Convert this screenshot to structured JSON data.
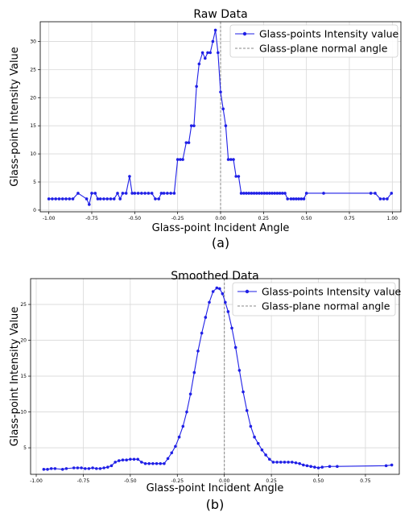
{
  "chart_data": [
    {
      "type": "line",
      "title": "Raw Data",
      "caption": "(a)",
      "xlabel": "Glass-point Incident Angle",
      "ylabel": "Glass-point Intensity Value",
      "xlim": [
        -1.05,
        1.05
      ],
      "ylim": [
        -0.3,
        33.5
      ],
      "xticks": [
        -1.0,
        -0.75,
        -0.5,
        -0.25,
        0.0,
        0.25,
        0.5,
        0.75,
        1.0
      ],
      "xtick_labels": [
        "-1.00",
        "-0.75",
        "-0.50",
        "-0.25",
        "0.00",
        "0.25",
        "0.50",
        "0.75",
        "1.00"
      ],
      "yticks": [
        0,
        5,
        10,
        15,
        20,
        25,
        30
      ],
      "ytick_labels": [
        "0",
        "5",
        "10",
        "15",
        "20",
        "25",
        "30"
      ],
      "grid": true,
      "legend_position": "top-right",
      "normal_angle": 0.0,
      "series": [
        {
          "name": "Glass-points Intensity value",
          "color": "#1f1fe6",
          "points": [
            [
              -1.0,
              2
            ],
            [
              -0.98,
              2
            ],
            [
              -0.96,
              2
            ],
            [
              -0.94,
              2
            ],
            [
              -0.92,
              2
            ],
            [
              -0.9,
              2
            ],
            [
              -0.88,
              2
            ],
            [
              -0.86,
              2
            ],
            [
              -0.83,
              3
            ],
            [
              -0.78,
              2
            ],
            [
              -0.765,
              1
            ],
            [
              -0.75,
              3
            ],
            [
              -0.73,
              3
            ],
            [
              -0.715,
              2
            ],
            [
              -0.7,
              2
            ],
            [
              -0.68,
              2
            ],
            [
              -0.66,
              2
            ],
            [
              -0.64,
              2
            ],
            [
              -0.62,
              2
            ],
            [
              -0.6,
              3
            ],
            [
              -0.585,
              2
            ],
            [
              -0.57,
              3
            ],
            [
              -0.55,
              3
            ],
            [
              -0.53,
              6
            ],
            [
              -0.515,
              3
            ],
            [
              -0.5,
              3
            ],
            [
              -0.48,
              3
            ],
            [
              -0.46,
              3
            ],
            [
              -0.44,
              3
            ],
            [
              -0.42,
              3
            ],
            [
              -0.4,
              3
            ],
            [
              -0.38,
              2
            ],
            [
              -0.36,
              2
            ],
            [
              -0.345,
              3
            ],
            [
              -0.33,
              3
            ],
            [
              -0.31,
              3
            ],
            [
              -0.29,
              3
            ],
            [
              -0.27,
              3
            ],
            [
              -0.25,
              9
            ],
            [
              -0.235,
              9
            ],
            [
              -0.22,
              9
            ],
            [
              -0.2,
              12
            ],
            [
              -0.185,
              12
            ],
            [
              -0.17,
              15
            ],
            [
              -0.155,
              15
            ],
            [
              -0.14,
              22
            ],
            [
              -0.125,
              26
            ],
            [
              -0.105,
              28
            ],
            [
              -0.09,
              27
            ],
            [
              -0.075,
              28
            ],
            [
              -0.06,
              28
            ],
            [
              -0.045,
              30
            ],
            [
              -0.03,
              32
            ],
            [
              -0.015,
              28
            ],
            [
              0.0,
              21
            ],
            [
              0.015,
              18
            ],
            [
              0.03,
              15
            ],
            [
              0.045,
              9
            ],
            [
              0.06,
              9
            ],
            [
              0.075,
              9
            ],
            [
              0.09,
              6
            ],
            [
              0.105,
              6
            ],
            [
              0.12,
              3
            ],
            [
              0.135,
              3
            ],
            [
              0.15,
              3
            ],
            [
              0.165,
              3
            ],
            [
              0.18,
              3
            ],
            [
              0.195,
              3
            ],
            [
              0.21,
              3
            ],
            [
              0.225,
              3
            ],
            [
              0.24,
              3
            ],
            [
              0.255,
              3
            ],
            [
              0.27,
              3
            ],
            [
              0.285,
              3
            ],
            [
              0.3,
              3
            ],
            [
              0.315,
              3
            ],
            [
              0.33,
              3
            ],
            [
              0.345,
              3
            ],
            [
              0.36,
              3
            ],
            [
              0.375,
              3
            ],
            [
              0.39,
              2
            ],
            [
              0.41,
              2
            ],
            [
              0.425,
              2
            ],
            [
              0.44,
              2
            ],
            [
              0.455,
              2
            ],
            [
              0.47,
              2
            ],
            [
              0.485,
              2
            ],
            [
              0.5,
              3
            ],
            [
              0.6,
              3
            ],
            [
              0.875,
              3
            ],
            [
              0.9,
              3
            ],
            [
              0.93,
              2
            ],
            [
              0.95,
              2
            ],
            [
              0.97,
              2
            ],
            [
              0.995,
              3
            ]
          ]
        },
        {
          "name": "Glass-plane normal angle",
          "color": "#888888",
          "style": "dashed"
        }
      ]
    },
    {
      "type": "line",
      "title": "Smoothed Data",
      "caption": "(b)",
      "xlabel": "Glass-point Incident Angle",
      "ylabel": "Glass-point Intensity Value",
      "xlim": [
        -1.03,
        0.93
      ],
      "ylim": [
        1.3,
        28.6
      ],
      "xticks": [
        -1.0,
        -0.75,
        -0.5,
        -0.25,
        0.0,
        0.25,
        0.5,
        0.75
      ],
      "xtick_labels": [
        "-1.00",
        "-0.75",
        "-0.50",
        "-0.25",
        "0.00",
        "0.25",
        "0.50",
        "0.75"
      ],
      "yticks": [
        5,
        10,
        15,
        20,
        25
      ],
      "ytick_labels": [
        "5",
        "10",
        "15",
        "20",
        "25"
      ],
      "grid": true,
      "legend_position": "top-right",
      "normal_angle": 0.0,
      "series": [
        {
          "name": "Glass-points Intensity value",
          "color": "#1f1fe6",
          "points": [
            [
              -0.96,
              2.0
            ],
            [
              -0.94,
              2.0
            ],
            [
              -0.92,
              2.1
            ],
            [
              -0.9,
              2.1
            ],
            [
              -0.86,
              2.0
            ],
            [
              -0.84,
              2.1
            ],
            [
              -0.8,
              2.2
            ],
            [
              -0.78,
              2.2
            ],
            [
              -0.76,
              2.2
            ],
            [
              -0.74,
              2.1
            ],
            [
              -0.72,
              2.1
            ],
            [
              -0.7,
              2.2
            ],
            [
              -0.68,
              2.1
            ],
            [
              -0.66,
              2.1
            ],
            [
              -0.64,
              2.2
            ],
            [
              -0.62,
              2.3
            ],
            [
              -0.6,
              2.5
            ],
            [
              -0.58,
              3.0
            ],
            [
              -0.56,
              3.2
            ],
            [
              -0.54,
              3.3
            ],
            [
              -0.52,
              3.3
            ],
            [
              -0.5,
              3.4
            ],
            [
              -0.48,
              3.4
            ],
            [
              -0.46,
              3.4
            ],
            [
              -0.44,
              3.0
            ],
            [
              -0.42,
              2.8
            ],
            [
              -0.4,
              2.8
            ],
            [
              -0.38,
              2.8
            ],
            [
              -0.36,
              2.8
            ],
            [
              -0.34,
              2.8
            ],
            [
              -0.32,
              2.8
            ],
            [
              -0.3,
              3.5
            ],
            [
              -0.28,
              4.3
            ],
            [
              -0.26,
              5.2
            ],
            [
              -0.24,
              6.5
            ],
            [
              -0.22,
              8.0
            ],
            [
              -0.2,
              10.0
            ],
            [
              -0.18,
              12.5
            ],
            [
              -0.16,
              15.5
            ],
            [
              -0.14,
              18.5
            ],
            [
              -0.12,
              21.0
            ],
            [
              -0.1,
              23.2
            ],
            [
              -0.08,
              25.3
            ],
            [
              -0.06,
              26.8
            ],
            [
              -0.04,
              27.3
            ],
            [
              -0.025,
              27.2
            ],
            [
              -0.01,
              26.5
            ],
            [
              0.005,
              25.3
            ],
            [
              0.02,
              24.0
            ],
            [
              0.04,
              21.7
            ],
            [
              0.06,
              19.0
            ],
            [
              0.08,
              15.8
            ],
            [
              0.1,
              12.8
            ],
            [
              0.12,
              10.2
            ],
            [
              0.14,
              8.0
            ],
            [
              0.16,
              6.5
            ],
            [
              0.18,
              5.6
            ],
            [
              0.2,
              4.7
            ],
            [
              0.22,
              4.0
            ],
            [
              0.24,
              3.4
            ],
            [
              0.26,
              3.0
            ],
            [
              0.28,
              3.0
            ],
            [
              0.3,
              3.0
            ],
            [
              0.32,
              3.0
            ],
            [
              0.34,
              3.0
            ],
            [
              0.36,
              3.0
            ],
            [
              0.38,
              2.9
            ],
            [
              0.4,
              2.8
            ],
            [
              0.42,
              2.6
            ],
            [
              0.44,
              2.5
            ],
            [
              0.46,
              2.4
            ],
            [
              0.48,
              2.3
            ],
            [
              0.5,
              2.2
            ],
            [
              0.52,
              2.3
            ],
            [
              0.56,
              2.4
            ],
            [
              0.6,
              2.4
            ],
            [
              0.86,
              2.5
            ],
            [
              0.89,
              2.6
            ]
          ]
        },
        {
          "name": "Glass-plane normal angle",
          "color": "#888888",
          "style": "dashed"
        }
      ]
    }
  ]
}
